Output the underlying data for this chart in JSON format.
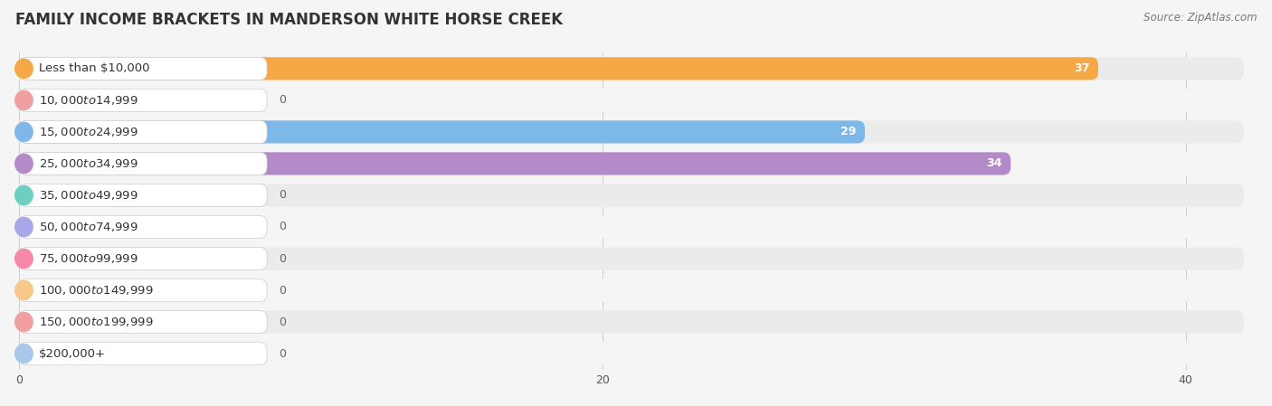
{
  "title": "FAMILY INCOME BRACKETS IN MANDERSON WHITE HORSE CREEK",
  "source": "Source: ZipAtlas.com",
  "categories": [
    "Less than $10,000",
    "$10,000 to $14,999",
    "$15,000 to $24,999",
    "$25,000 to $34,999",
    "$35,000 to $49,999",
    "$50,000 to $74,999",
    "$75,000 to $99,999",
    "$100,000 to $149,999",
    "$150,000 to $199,999",
    "$200,000+"
  ],
  "values": [
    37,
    0,
    29,
    34,
    0,
    0,
    0,
    0,
    0,
    0
  ],
  "bar_colors": [
    "#F5A843",
    "#F0A0A0",
    "#7EB8E8",
    "#B48BC8",
    "#6ECEC0",
    "#A8A8E8",
    "#F888A8",
    "#F8C888",
    "#F0A0A0",
    "#A8C8E8"
  ],
  "background_color": "#f5f5f5",
  "row_bg_color": "#ebebeb",
  "white_label_bg": "#ffffff",
  "xlim_max": 42,
  "title_fontsize": 12,
  "label_fontsize": 9.5,
  "value_fontsize": 9,
  "source_fontsize": 8.5
}
